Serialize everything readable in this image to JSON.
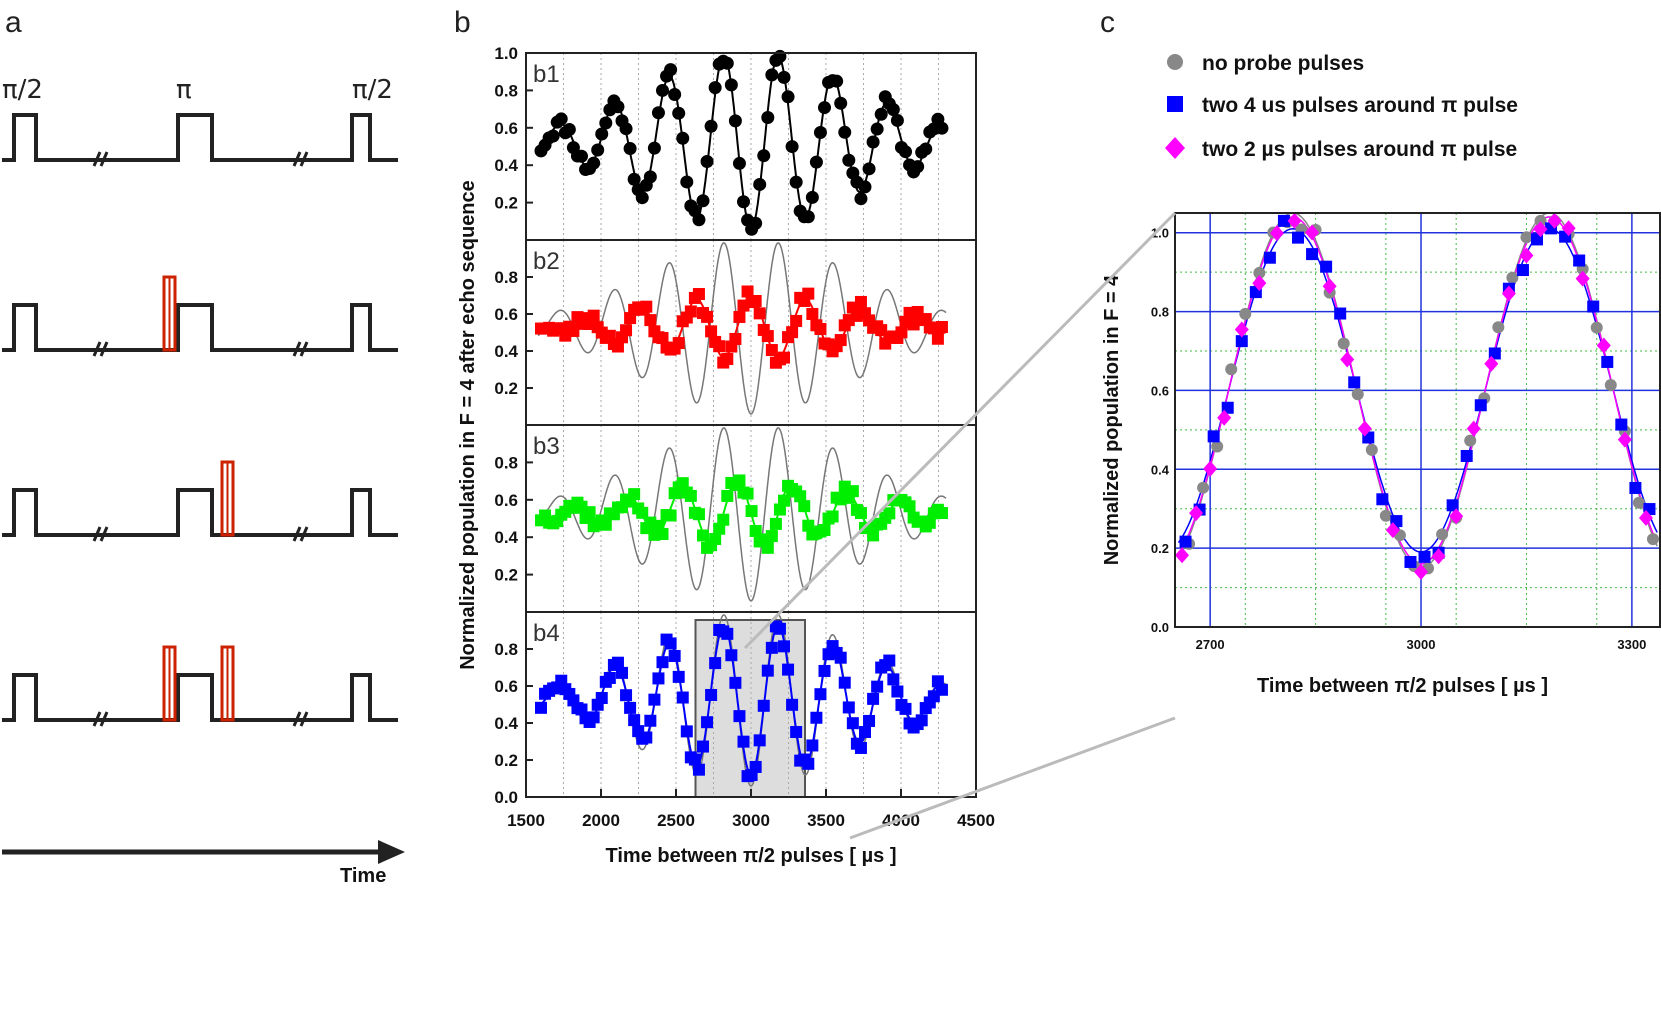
{
  "panel_labels": {
    "a": "a",
    "b": "b",
    "c": "c"
  },
  "panel_a": {
    "pulse_labels": [
      "π/2",
      "π",
      "π/2"
    ],
    "time_label": "Time",
    "break_symbol": "//",
    "sequences": [
      {
        "probe_before_pi": false,
        "probe_after_pi": false
      },
      {
        "probe_before_pi": true,
        "probe_after_pi": false
      },
      {
        "probe_before_pi": false,
        "probe_after_pi": true
      },
      {
        "probe_before_pi": true,
        "probe_after_pi": true
      }
    ],
    "colors": {
      "line": "#222222",
      "probe": "#cc2200"
    }
  },
  "chart_data": [
    {
      "type": "scatter",
      "id": "panel-b",
      "title": "",
      "xlabel": "Time between π/2 pulses [ µs ]",
      "ylabel": "Normalized population in  F = 4 after echo sequence",
      "xlim": [
        1500,
        4500
      ],
      "ylim": [
        0,
        1.0
      ],
      "xticks": [
        "1500",
        "2000",
        "2500",
        "3000",
        "3500",
        "4000",
        "4500"
      ],
      "yticks_b1": [
        "0.2",
        "0.4",
        "0.6",
        "0.8",
        "1.0"
      ],
      "yticks_b2_b3": [
        "0.2",
        "0.4",
        "0.6",
        "0.8"
      ],
      "yticks_b4": [
        "0.0",
        "0.2",
        "0.4",
        "0.6",
        "0.8"
      ],
      "highlight_region": [
        2630,
        3360
      ],
      "model": {
        "center": 3000,
        "period": 365,
        "envelope_width": 700,
        "offset": 0.53
      },
      "subplots": [
        {
          "label": "b1",
          "color": "#000000",
          "amplitude": 0.47,
          "phase": 3.14159,
          "seed": 11,
          "reference_curve": false
        },
        {
          "label": "b2",
          "color": "#ff0000",
          "amplitude": 0.17,
          "phase": 0.0,
          "seed": 23,
          "reference_curve": true
        },
        {
          "label": "b3",
          "color": "#00ee00",
          "amplitude": 0.17,
          "phase": 1.5708,
          "seed": 37,
          "reference_curve": true
        },
        {
          "label": "b4",
          "color": "#0000ff",
          "amplitude": 0.41,
          "phase": 3.14159,
          "seed": 51,
          "reference_curve": true
        }
      ]
    },
    {
      "type": "scatter",
      "id": "panel-c",
      "xlabel": "Time between π/2 pulses [ µs ]",
      "ylabel": "Normalized population in  F = 4",
      "xlim": [
        2650,
        3340
      ],
      "ylim": [
        0,
        1.05
      ],
      "xticks": [
        "2700",
        "3000",
        "3300"
      ],
      "yticks": [
        "0.0",
        "0.2",
        "0.4",
        "0.6",
        "0.8",
        "1.0"
      ],
      "legend_position": "top",
      "series": [
        {
          "name": "no probe pulses",
          "color": "#888888",
          "marker": "circle",
          "seed": 5,
          "x": [
            2670,
            2690,
            2710,
            2730,
            2750,
            2770,
            2790,
            2810,
            2830,
            2850,
            2870,
            2890,
            2910,
            2930,
            2950,
            2970,
            2990,
            3010,
            3030,
            3050,
            3070,
            3090,
            3110,
            3130,
            3150,
            3170,
            3190,
            3210,
            3230,
            3250,
            3270,
            3290,
            3310,
            3330
          ]
        },
        {
          "name": "two 4 us pulses around π pulse",
          "color": "#0000ff",
          "marker": "square",
          "seed": 9,
          "x": [
            2665,
            2685,
            2705,
            2725,
            2745,
            2765,
            2785,
            2805,
            2825,
            2845,
            2865,
            2885,
            2905,
            2925,
            2945,
            2965,
            2985,
            3005,
            3025,
            3045,
            3065,
            3085,
            3105,
            3125,
            3145,
            3165,
            3185,
            3205,
            3225,
            3245,
            3265,
            3285,
            3305,
            3325
          ]
        },
        {
          "name": "two 2 µs pulses around π pulse",
          "color": "#ff00ff",
          "marker": "diamond",
          "seed": 14,
          "x": [
            2660,
            2680,
            2700,
            2720,
            2745,
            2770,
            2795,
            2820,
            2845,
            2870,
            2895,
            2920,
            2960,
            3000,
            3025,
            3050,
            3075,
            3100,
            3125,
            3150,
            3170,
            3190,
            3210,
            3230,
            3260,
            3290,
            3320
          ]
        }
      ]
    }
  ]
}
